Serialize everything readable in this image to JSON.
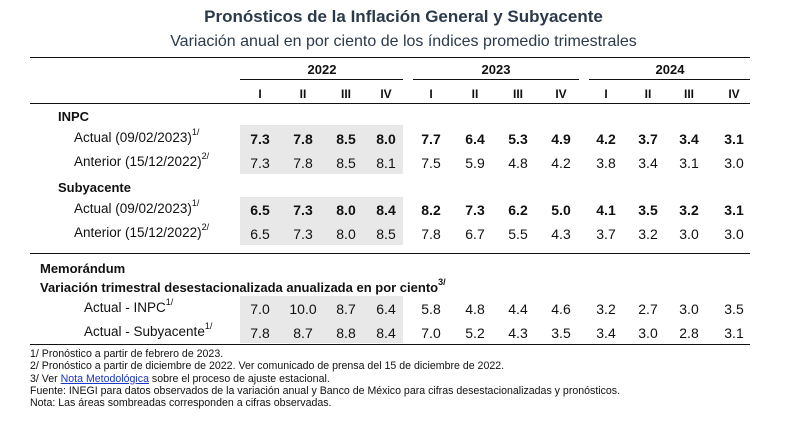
{
  "title": "Pronósticos de la Inflación General y Subyacente",
  "subtitle": "Variación anual en por ciento de los índices promedio trimestrales",
  "years": [
    "2022",
    "2023",
    "2024"
  ],
  "quarters": [
    "I",
    "II",
    "III",
    "IV",
    "I",
    "II",
    "III",
    "IV",
    "I",
    "II",
    "III",
    "IV"
  ],
  "sections": {
    "inpc": "INPC",
    "subyacente": "Subyacente",
    "memorandum": "Memorándum",
    "variacion": "Variación trimestral desestacionalizada anualizada en por ciento",
    "variacion_sup": "3/"
  },
  "rows": [
    {
      "label": "Actual (09/02/2023)",
      "sup": "1/",
      "bold": true,
      "values": [
        "7.3",
        "7.8",
        "8.5",
        "8.0",
        "7.7",
        "6.4",
        "5.3",
        "4.9",
        "4.2",
        "3.7",
        "3.4",
        "3.1"
      ]
    },
    {
      "label": "Anterior (15/12/2022)",
      "sup": "2/",
      "bold": false,
      "values": [
        "7.3",
        "7.8",
        "8.5",
        "8.1",
        "7.5",
        "5.9",
        "4.8",
        "4.2",
        "3.8",
        "3.4",
        "3.1",
        "3.0"
      ]
    },
    {
      "label": "Actual (09/02/2023)",
      "sup": "1/",
      "bold": true,
      "values": [
        "6.5",
        "7.3",
        "8.0",
        "8.4",
        "8.2",
        "7.3",
        "6.2",
        "5.0",
        "4.1",
        "3.5",
        "3.2",
        "3.1"
      ]
    },
    {
      "label": "Anterior (15/12/2022)",
      "sup": "2/",
      "bold": false,
      "values": [
        "6.5",
        "7.3",
        "8.0",
        "8.5",
        "7.8",
        "6.7",
        "5.5",
        "4.3",
        "3.7",
        "3.2",
        "3.0",
        "3.0"
      ]
    },
    {
      "label": "Actual - INPC",
      "sup": "1/",
      "bold": false,
      "values": [
        "7.0",
        "10.0",
        "8.7",
        "6.4",
        "5.8",
        "4.8",
        "4.4",
        "4.6",
        "3.2",
        "2.7",
        "3.0",
        "3.5"
      ]
    },
    {
      "label": "Actual - Subyacente",
      "sup": "1/",
      "bold": false,
      "values": [
        "7.8",
        "8.7",
        "8.8",
        "8.4",
        "7.0",
        "5.2",
        "4.3",
        "3.5",
        "3.4",
        "3.0",
        "2.8",
        "3.1"
      ]
    }
  ],
  "notes": {
    "n1": "1/ Pronóstico a partir de febrero de 2023.",
    "n2": "2/ Pronóstico a partir de diciembre de 2022. Ver comunicado de prensa del 15 de diciembre de 2022.",
    "n3_pre": "3/ Ver ",
    "n3_link": "Nota Metodológica",
    "n3_post": " sobre el proceso de ajuste estacional.",
    "fuente": "Fuente: INEGI para datos observados de la variación anual y Banco de México para cifras desestacionalizadas y pronósticos.",
    "nota": "Nota: Las áreas sombreadas corresponden a cifras observadas."
  }
}
